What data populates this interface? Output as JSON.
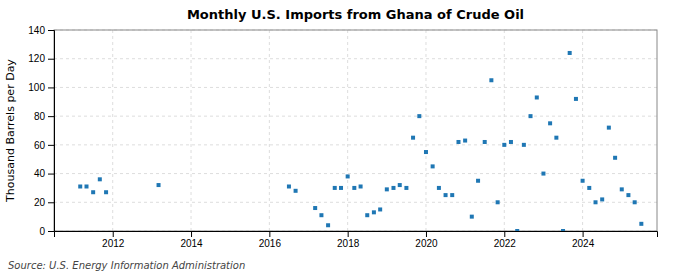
{
  "chart_data": {
    "type": "scatter",
    "title": "Monthly U.S. Imports from Ghana of Crude Oil",
    "ylabel": "Thousand Barrels per Day",
    "source": "Source: U.S. Energy Information Administration",
    "marker": "square",
    "grid": true,
    "xlim": [
      2010.5,
      2025.9
    ],
    "xticks": [
      2012,
      2014,
      2016,
      2018,
      2020,
      2022,
      2024
    ],
    "ylim": [
      0,
      140
    ],
    "yticks": [
      0,
      20,
      40,
      60,
      80,
      100,
      120,
      140
    ],
    "x": [
      2011.17,
      2011.33,
      2011.5,
      2011.67,
      2011.83,
      2013.17,
      2016.5,
      2016.67,
      2017.17,
      2017.33,
      2017.5,
      2017.67,
      2017.83,
      2018.0,
      2018.17,
      2018.33,
      2018.5,
      2018.67,
      2018.83,
      2019.0,
      2019.17,
      2019.33,
      2019.5,
      2019.67,
      2019.83,
      2020.0,
      2020.17,
      2020.33,
      2020.5,
      2020.67,
      2020.83,
      2021.0,
      2021.17,
      2021.33,
      2021.5,
      2021.67,
      2021.83,
      2022.0,
      2022.17,
      2022.33,
      2022.5,
      2022.67,
      2022.83,
      2023.0,
      2023.17,
      2023.33,
      2023.5,
      2023.67,
      2023.83,
      2024.0,
      2024.17,
      2024.33,
      2024.5,
      2024.67,
      2024.83,
      2025.0,
      2025.17,
      2025.33,
      2025.5
    ],
    "values": [
      31,
      31,
      27,
      36,
      27,
      32,
      31,
      28,
      16,
      11,
      4,
      30,
      30,
      38,
      30,
      31,
      11,
      13,
      15,
      29,
      30,
      32,
      30,
      65,
      80,
      55,
      45,
      30,
      25,
      25,
      62,
      63,
      10,
      35,
      62,
      105,
      20,
      60,
      62,
      0,
      60,
      80,
      93,
      40,
      75,
      65,
      0,
      124,
      92,
      35,
      30,
      20,
      22,
      72,
      51,
      29,
      25,
      20,
      5
    ]
  }
}
